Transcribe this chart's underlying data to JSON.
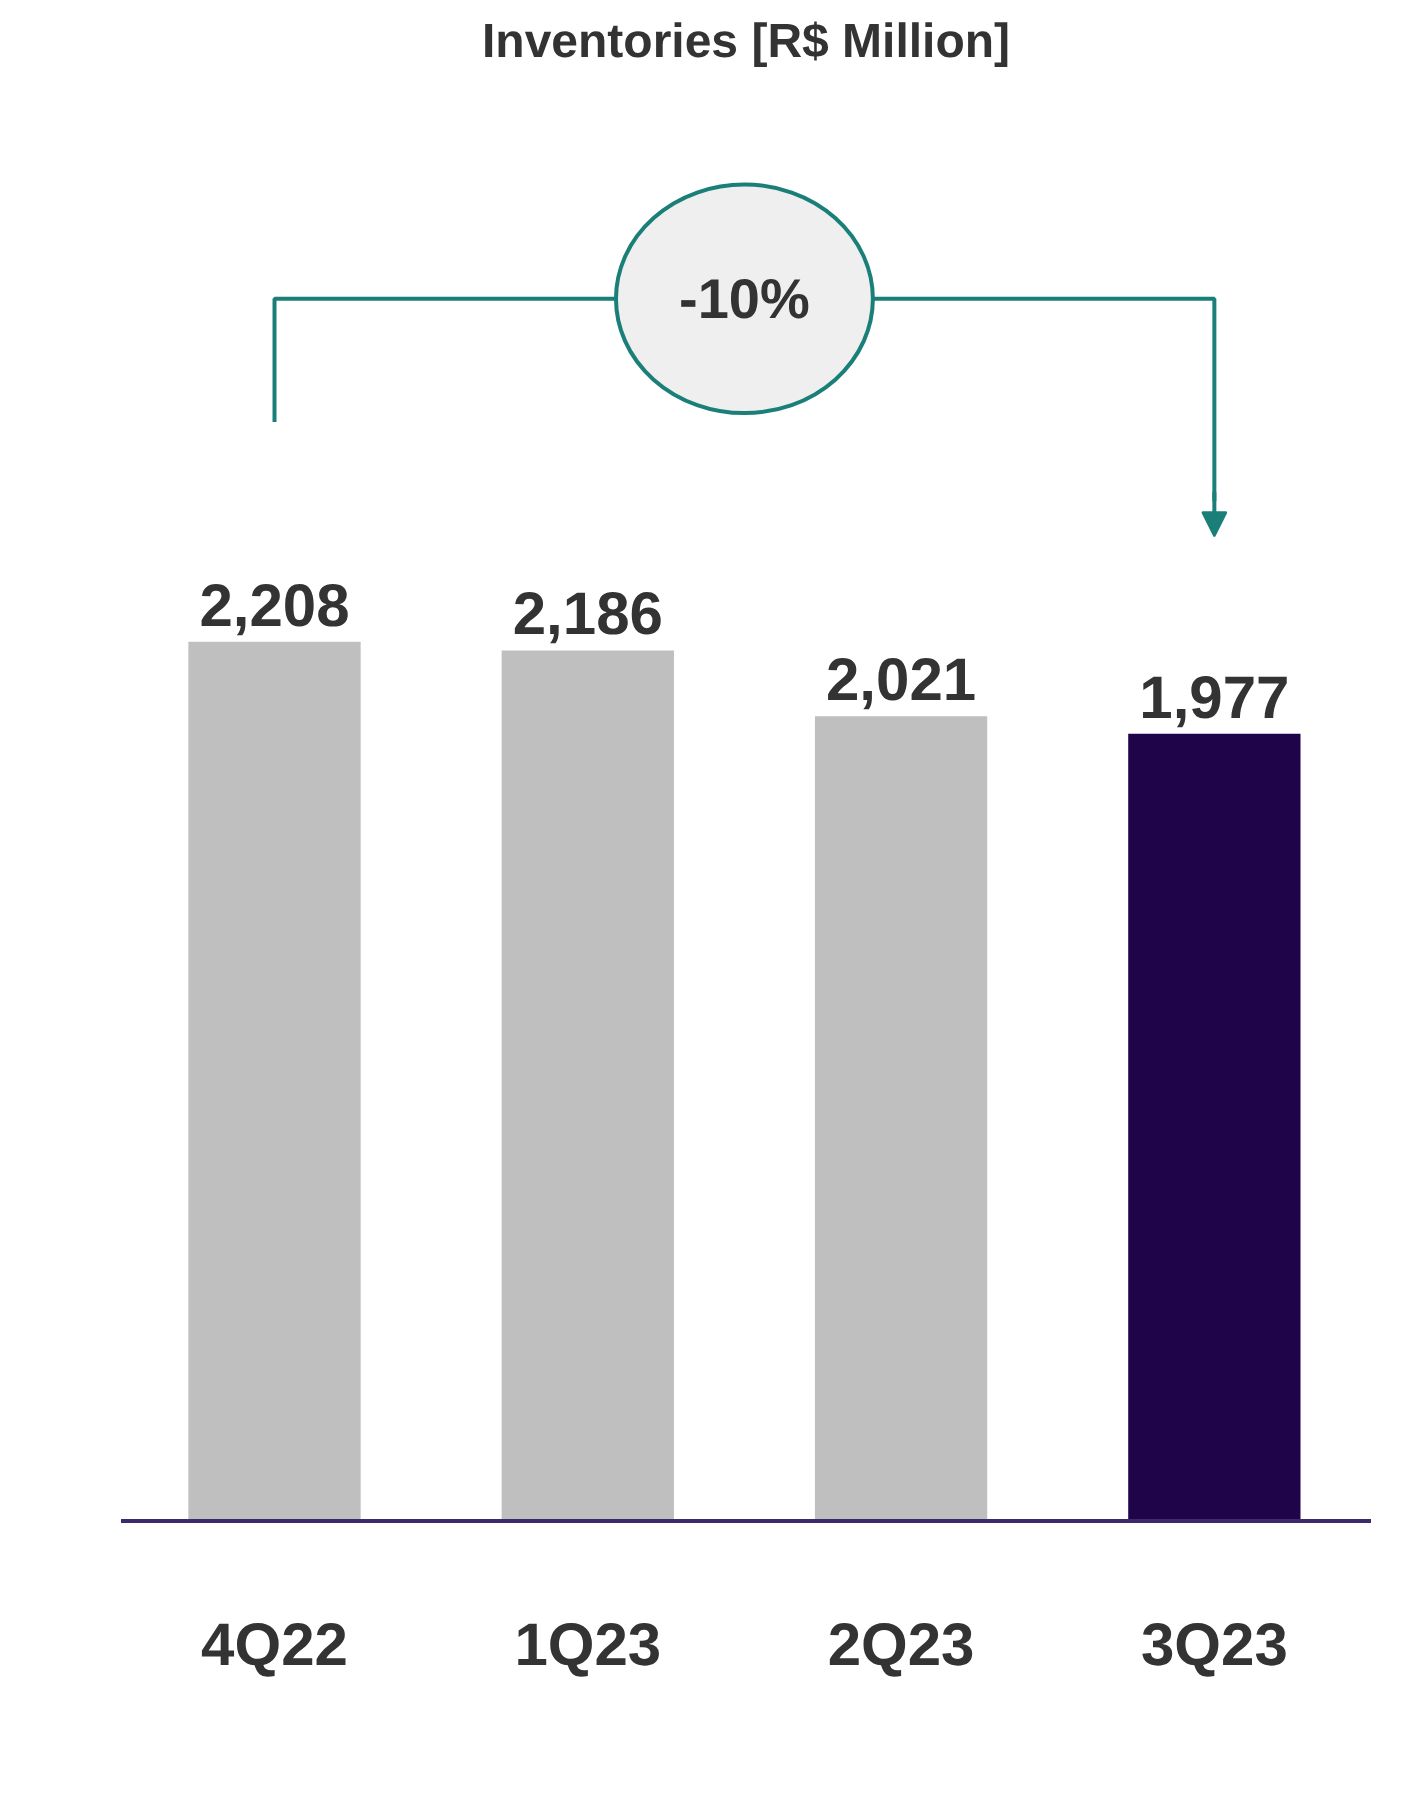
{
  "chart_data": {
    "type": "bar",
    "title": "Inventories [R$ Million]",
    "categories": [
      "4Q22",
      "1Q23",
      "2Q23",
      "3Q23"
    ],
    "values": [
      2208,
      2186,
      2021,
      1977
    ],
    "colors": [
      "#bfbfbf",
      "#bfbfbf",
      "#bfbfbf",
      "#200449"
    ],
    "value_labels": [
      "2,208",
      "2,186",
      "2,021",
      "1,977"
    ],
    "annotations": [
      "-10%"
    ]
  }
}
